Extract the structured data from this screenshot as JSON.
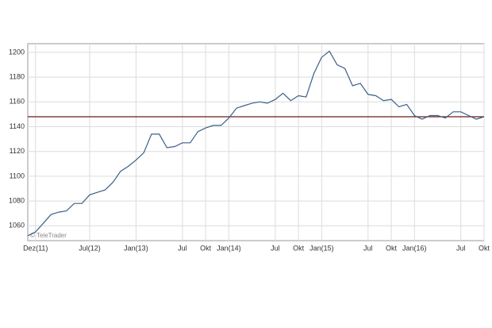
{
  "chart_data": {
    "type": "line",
    "categories": [
      null,
      "Dez(11)",
      null,
      null,
      null,
      null,
      null,
      null,
      "Jul(12)",
      null,
      null,
      null,
      null,
      null,
      "Jan(13)",
      null,
      null,
      null,
      null,
      null,
      "Jul",
      null,
      null,
      "Okt",
      null,
      null,
      "Jan(14)",
      null,
      null,
      null,
      null,
      null,
      "Jul",
      null,
      null,
      "Okt",
      null,
      null,
      "Jan(15)",
      null,
      null,
      null,
      null,
      null,
      "Jul",
      null,
      null,
      "Okt",
      null,
      null,
      "Jan(16)",
      null,
      null,
      null,
      null,
      null,
      "Jul",
      null,
      null,
      "Okt"
    ],
    "series": [
      {
        "color": "#3d5f8a",
        "values": [
          1052,
          1055,
          1062,
          1069,
          1071,
          1072,
          1078,
          1078,
          1085,
          1087,
          1089,
          1095,
          1104,
          1108,
          1113,
          1119,
          1134,
          1134,
          1123,
          1124,
          1127,
          1127,
          1136,
          1139,
          1141,
          1141,
          1147,
          1155,
          1157,
          1159,
          1160,
          1159,
          1162,
          1167,
          1161,
          1165,
          1164,
          1183,
          1196,
          1201,
          1190,
          1187,
          1173,
          1175,
          1166,
          1165,
          1161,
          1162,
          1156,
          1158,
          1149,
          1146,
          1149,
          1149,
          1147,
          1152,
          1152,
          1149,
          1146,
          1148
        ]
      }
    ],
    "reference_line": {
      "value": 1148,
      "color": "#6b1a1a"
    },
    "ylim": [
      1048,
      1207
    ],
    "yticks": [
      1060,
      1080,
      1100,
      1120,
      1140,
      1160,
      1180,
      1200
    ],
    "grid": true,
    "watermark": "© TeleTrader"
  }
}
